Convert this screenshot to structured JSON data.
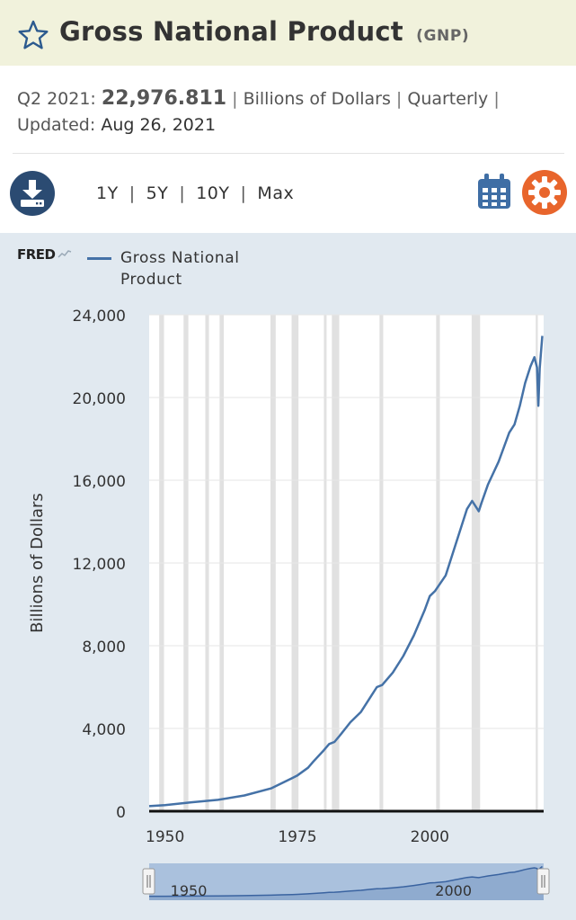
{
  "header": {
    "title": "Gross National Product",
    "symbol": "(GNP)"
  },
  "meta": {
    "period_label": "Q2 2021:",
    "value": "22,976.811",
    "sep": "|",
    "units": "Billions of Dollars",
    "frequency": "Quarterly",
    "updated_label": "Updated:",
    "updated_date": "Aug 26, 2021"
  },
  "toolbar": {
    "ranges": [
      "1Y",
      "5Y",
      "10Y",
      "Max"
    ],
    "separator": "|"
  },
  "icons": {
    "favorite": "star-icon",
    "download": "download-icon",
    "calendar": "calendar-icon",
    "settings": "gear-icon"
  },
  "colors": {
    "title_bar": "#f1f2dc",
    "chart_bg": "#e1e9f0",
    "series": "#4572a7",
    "recession": "#e1e1e1",
    "download": "#2b4b72",
    "settings": "#e8652c",
    "calendar": "#3f6ea5"
  },
  "brand": "FRED",
  "chart_data": {
    "type": "line",
    "title": "Gross National Product",
    "ylabel": "Billions of Dollars",
    "xlabel": "",
    "legend": [
      "Gross National Product"
    ],
    "legend_position": "top-left",
    "x_ticks": [
      1950,
      1975,
      2000
    ],
    "x_tick_labels": [
      "1950",
      "1975",
      "2000"
    ],
    "y_ticks": [
      0,
      4000,
      8000,
      12000,
      16000,
      20000,
      24000
    ],
    "y_tick_labels": [
      "0",
      "4,000",
      "8,000",
      "12,000",
      "16,000",
      "20,000",
      "24,000"
    ],
    "xlim": [
      1947,
      2021.5
    ],
    "ylim": [
      0,
      24000
    ],
    "recessions": [
      [
        1948.9,
        1949.8
      ],
      [
        1953.5,
        1954.4
      ],
      [
        1957.6,
        1958.3
      ],
      [
        1960.3,
        1961.1
      ],
      [
        1969.9,
        1970.9
      ],
      [
        1973.9,
        1975.2
      ],
      [
        1980.0,
        1980.5
      ],
      [
        1981.5,
        1982.9
      ],
      [
        1990.5,
        1991.2
      ],
      [
        2001.2,
        2001.9
      ],
      [
        2007.9,
        2009.5
      ],
      [
        2020.0,
        2020.4
      ]
    ],
    "series": [
      {
        "name": "Gross National Product",
        "x": [
          1947,
          1950,
          1955,
          1960,
          1965,
          1970,
          1972,
          1974,
          1975,
          1977,
          1978,
          1980,
          1981,
          1982,
          1983,
          1985,
          1987,
          1989,
          1990,
          1991,
          1993,
          1995,
          1997,
          1999,
          2000,
          2001,
          2003,
          2005,
          2006,
          2007,
          2008,
          2008.75,
          2009.25,
          2009.75,
          2011,
          2013,
          2015,
          2016,
          2017,
          2018,
          2019,
          2019.75,
          2020.25,
          2020.5,
          2020.75,
          2021.25
        ],
        "values": [
          245,
          290,
          430,
          550,
          760,
          1100,
          1350,
          1600,
          1730,
          2100,
          2400,
          2950,
          3250,
          3350,
          3650,
          4300,
          4800,
          5600,
          6000,
          6100,
          6700,
          7500,
          8500,
          9700,
          10400,
          10650,
          11400,
          13000,
          13800,
          14600,
          15000,
          14700,
          14500,
          14900,
          15800,
          16900,
          18300,
          18700,
          19600,
          20700,
          21500,
          21950,
          21450,
          19600,
          21400,
          22977
        ]
      }
    ]
  }
}
